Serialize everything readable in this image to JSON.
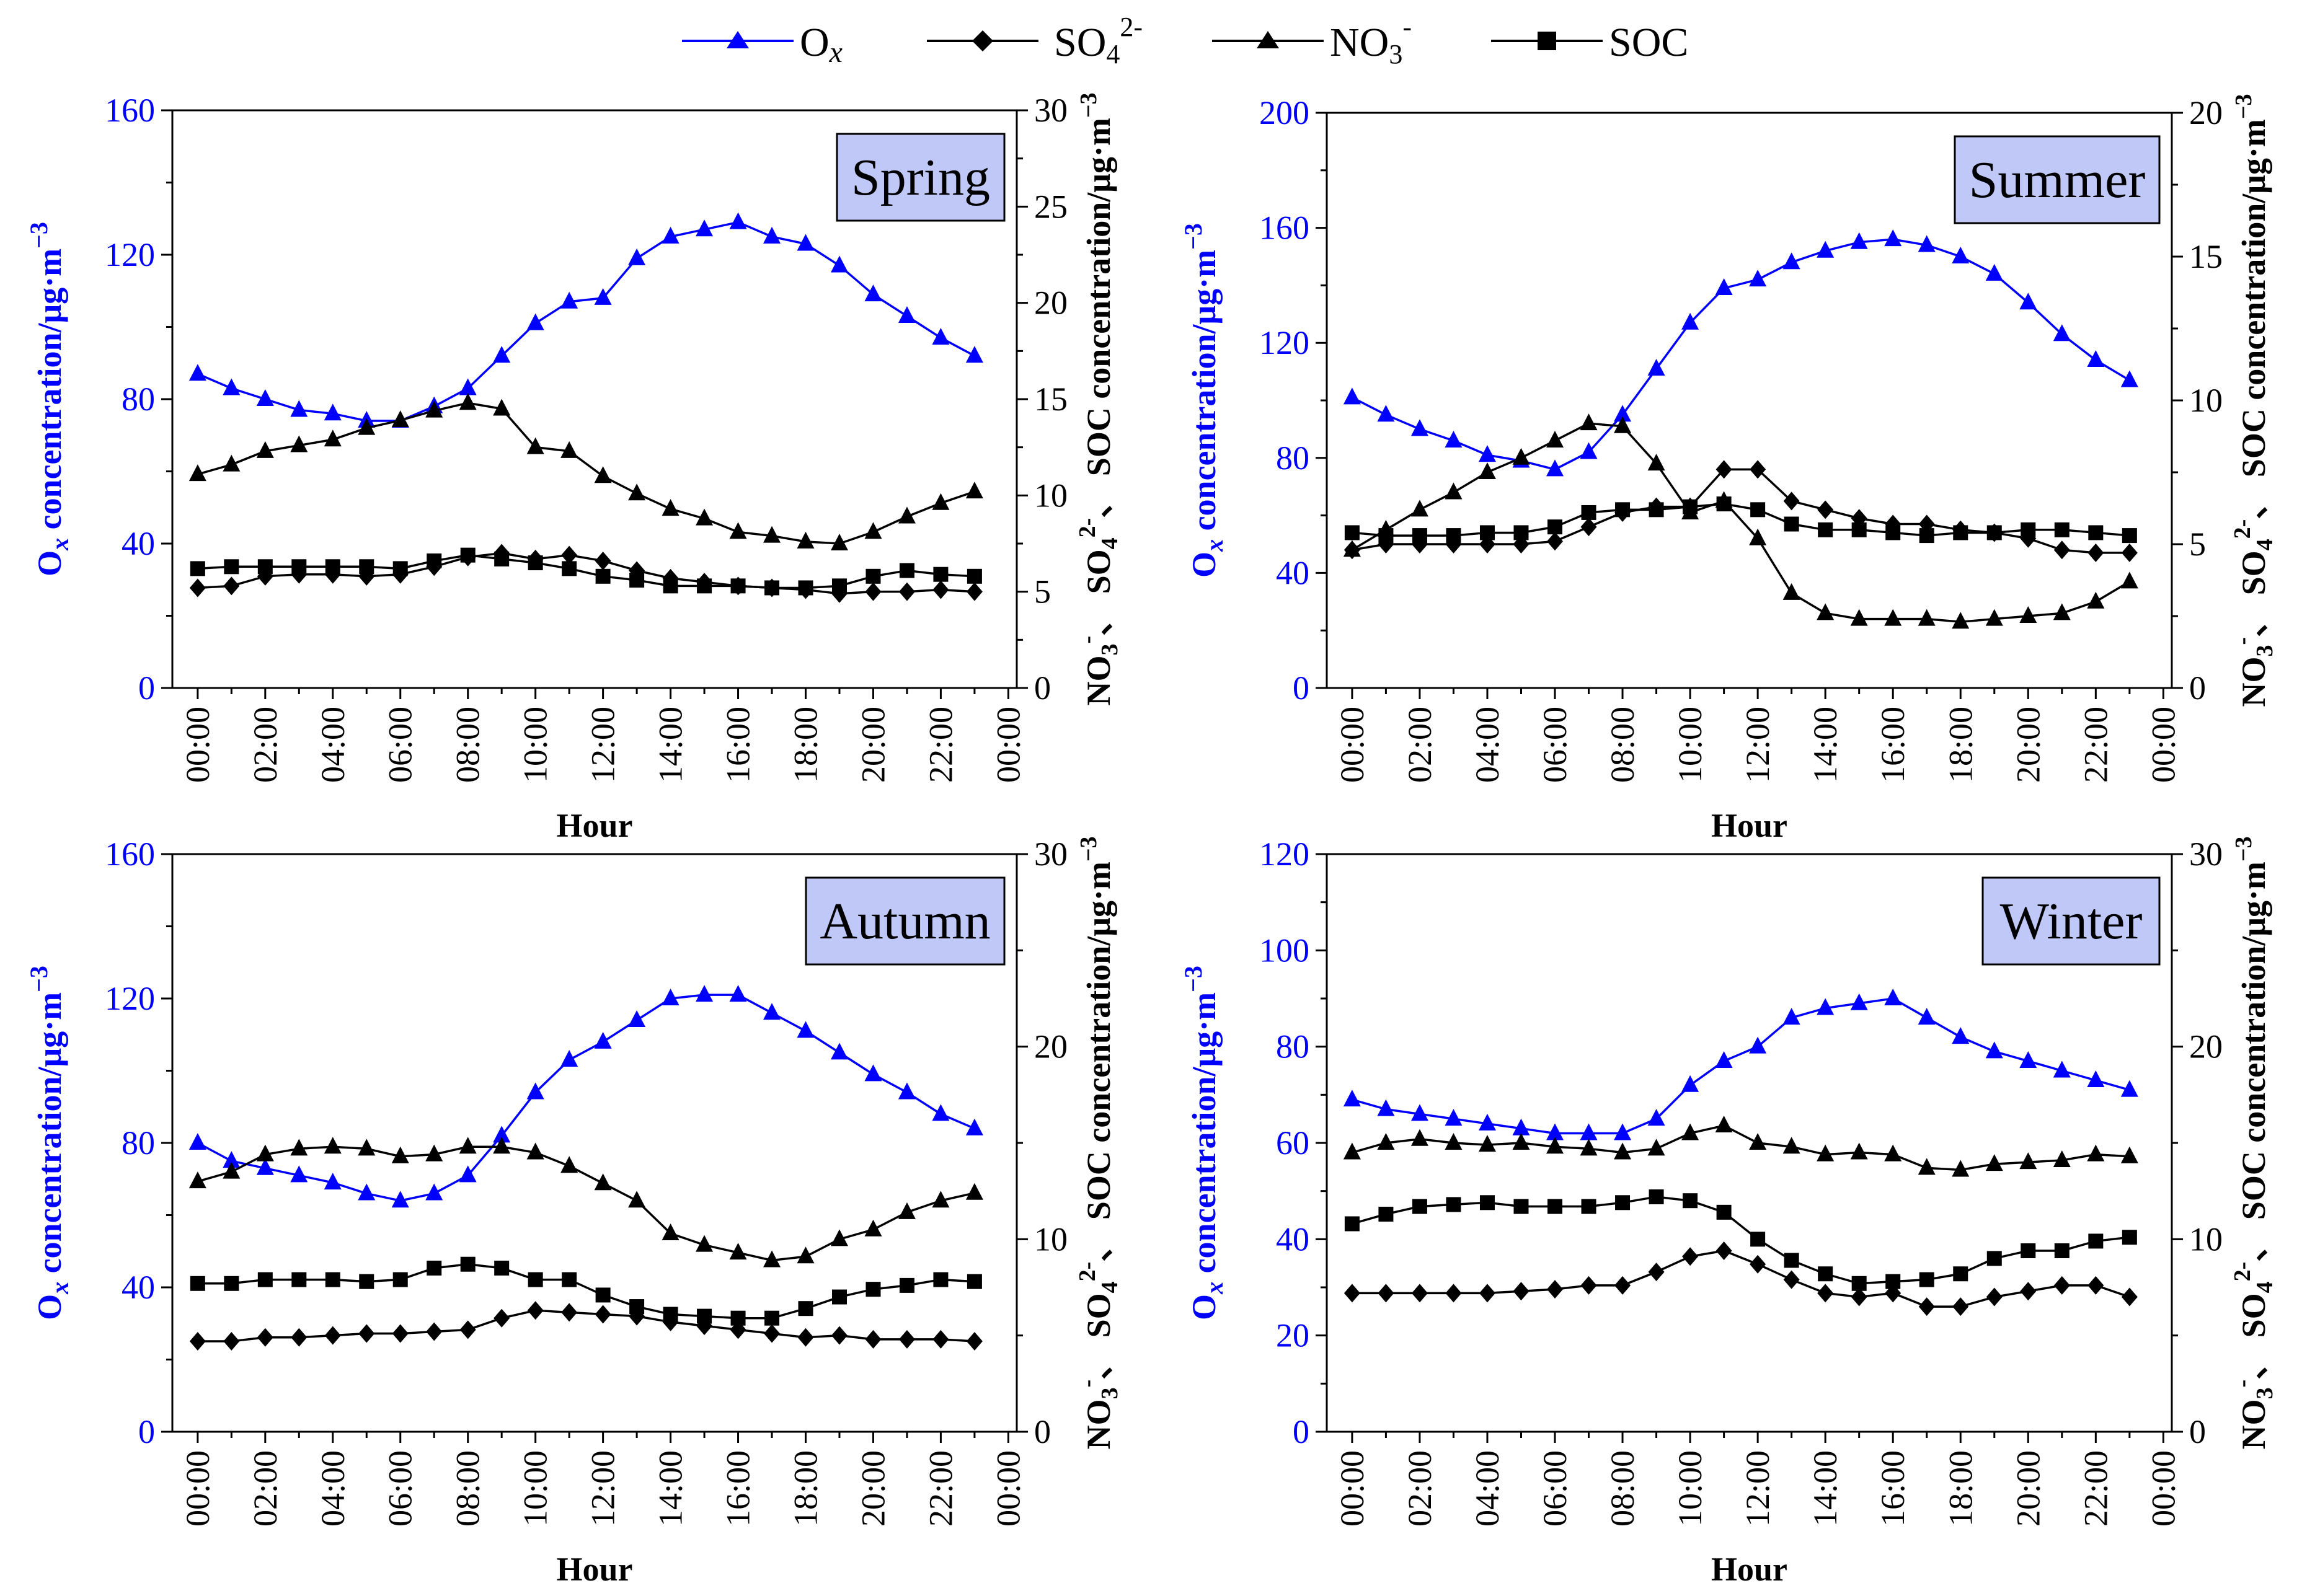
{
  "legend": {
    "ox": {
      "main": "O",
      "sub": "x"
    },
    "so4": {
      "main": "SO",
      "sub": "4",
      "sup": "2-"
    },
    "no3": {
      "main": "NO",
      "sub": "3",
      "sup": "-"
    },
    "soc": {
      "main": "SOC"
    }
  },
  "colors": {
    "ox": "#0000ff",
    "ions": "#000000",
    "panel_label_bg": "#c0c8f8"
  },
  "axis_text": {
    "xlabel": "Hour",
    "ylabel_left": {
      "main": "O",
      "sub": "x",
      "rest": " concentration/μg·m",
      "sup": "−3"
    },
    "ylabel_right": {
      "part1": "NO",
      "part1_sub": "3",
      "part1_sup": "-",
      "sep1": "、 SO",
      "part2_sub": "4",
      "part2_sup": "2-",
      "sep2": "、 SOC concentration/μg·m",
      "unit_sup": "−3"
    }
  },
  "chart_data": [
    {
      "type": "line",
      "title": "Spring",
      "categories": [
        "00:00",
        "02:00",
        "04:00",
        "06:00",
        "08:00",
        "10:00",
        "12:00",
        "14:00",
        "16:00",
        "18:00",
        "20:00",
        "22:00",
        "00:00"
      ],
      "x": [
        0,
        1,
        2,
        3,
        4,
        5,
        6,
        7,
        8,
        9,
        10,
        11,
        12,
        13,
        14,
        15,
        16,
        17,
        18,
        19,
        20,
        21,
        22,
        23
      ],
      "xlim": [
        -0.75,
        24.25
      ],
      "left_ylim": [
        0,
        160
      ],
      "left_yticks": [
        0,
        40,
        80,
        120,
        160
      ],
      "right_ylim": [
        0,
        30
      ],
      "right_yticks": [
        0,
        5,
        10,
        15,
        20,
        25,
        30
      ],
      "series": [
        {
          "name": "Ox",
          "axis": "left",
          "marker": "triangle",
          "values": [
            87,
            83,
            80,
            77,
            76,
            74,
            74,
            78,
            83,
            92,
            101,
            107,
            108,
            119,
            125,
            127,
            129,
            125,
            123,
            117,
            109,
            103,
            97,
            92
          ]
        },
        {
          "name": "SO42-",
          "axis": "right",
          "marker": "diamond",
          "values": [
            5.2,
            5.3,
            5.8,
            5.9,
            5.9,
            5.8,
            5.9,
            6.3,
            6.8,
            7.0,
            6.7,
            6.9,
            6.6,
            6.1,
            5.7,
            5.5,
            5.3,
            5.2,
            5.1,
            4.9,
            5.0,
            5.0,
            5.1,
            5.0
          ]
        },
        {
          "name": "NO3-",
          "axis": "right",
          "marker": "triangle",
          "values": [
            11.1,
            11.6,
            12.3,
            12.6,
            12.9,
            13.5,
            13.9,
            14.4,
            14.8,
            14.5,
            12.5,
            12.3,
            11.0,
            10.1,
            9.3,
            8.8,
            8.1,
            7.9,
            7.6,
            7.5,
            8.1,
            8.9,
            9.6,
            10.2
          ]
        },
        {
          "name": "SOC",
          "axis": "right",
          "marker": "square",
          "values": [
            6.2,
            6.3,
            6.3,
            6.3,
            6.3,
            6.3,
            6.2,
            6.6,
            6.9,
            6.7,
            6.5,
            6.2,
            5.8,
            5.6,
            5.3,
            5.3,
            5.3,
            5.2,
            5.2,
            5.3,
            5.8,
            6.1,
            5.9,
            5.8
          ]
        }
      ]
    },
    {
      "type": "line",
      "title": "Summer",
      "categories": [
        "00:00",
        "02:00",
        "04:00",
        "06:00",
        "08:00",
        "10:00",
        "12:00",
        "14:00",
        "16:00",
        "18:00",
        "20:00",
        "22:00",
        "00:00"
      ],
      "x": [
        0,
        1,
        2,
        3,
        4,
        5,
        6,
        7,
        8,
        9,
        10,
        11,
        12,
        13,
        14,
        15,
        16,
        17,
        18,
        19,
        20,
        21,
        22,
        23
      ],
      "xlim": [
        -0.75,
        24.25
      ],
      "left_ylim": [
        0,
        200
      ],
      "left_yticks": [
        0,
        40,
        80,
        120,
        160,
        200
      ],
      "right_ylim": [
        0,
        20
      ],
      "right_yticks": [
        0,
        5,
        10,
        15,
        20
      ],
      "series": [
        {
          "name": "Ox",
          "axis": "left",
          "marker": "triangle",
          "values": [
            101,
            95,
            90,
            86,
            81,
            79,
            76,
            82,
            95,
            111,
            127,
            139,
            142,
            148,
            152,
            155,
            156,
            154,
            150,
            144,
            134,
            123,
            114,
            107
          ]
        },
        {
          "name": "SO42-",
          "axis": "right",
          "marker": "diamond",
          "values": [
            4.8,
            5.0,
            5.0,
            5.0,
            5.0,
            5.0,
            5.1,
            5.6,
            6.1,
            6.3,
            6.3,
            7.6,
            7.6,
            6.5,
            6.2,
            5.9,
            5.7,
            5.7,
            5.5,
            5.4,
            5.2,
            4.8,
            4.7,
            4.7
          ]
        },
        {
          "name": "NO3-",
          "axis": "right",
          "marker": "triangle",
          "values": [
            4.8,
            5.5,
            6.2,
            6.8,
            7.5,
            8.0,
            8.6,
            9.2,
            9.1,
            7.8,
            6.1,
            6.5,
            5.2,
            3.3,
            2.6,
            2.4,
            2.4,
            2.4,
            2.3,
            2.4,
            2.5,
            2.6,
            3.0,
            3.7
          ]
        },
        {
          "name": "SOC",
          "axis": "right",
          "marker": "square",
          "values": [
            5.4,
            5.3,
            5.3,
            5.3,
            5.4,
            5.4,
            5.6,
            6.1,
            6.2,
            6.2,
            6.3,
            6.4,
            6.2,
            5.7,
            5.5,
            5.5,
            5.4,
            5.3,
            5.4,
            5.4,
            5.5,
            5.5,
            5.4,
            5.3
          ]
        }
      ]
    },
    {
      "type": "line",
      "title": "Autumn",
      "categories": [
        "00:00",
        "02:00",
        "04:00",
        "06:00",
        "08:00",
        "10:00",
        "12:00",
        "14:00",
        "16:00",
        "18:00",
        "20:00",
        "22:00",
        "00:00"
      ],
      "x": [
        0,
        1,
        2,
        3,
        4,
        5,
        6,
        7,
        8,
        9,
        10,
        11,
        12,
        13,
        14,
        15,
        16,
        17,
        18,
        19,
        20,
        21,
        22,
        23
      ],
      "xlim": [
        -0.75,
        24.25
      ],
      "left_ylim": [
        0,
        160
      ],
      "left_yticks": [
        0,
        40,
        80,
        120,
        160
      ],
      "right_ylim": [
        0,
        30
      ],
      "right_yticks": [
        0,
        10,
        20,
        30
      ],
      "series": [
        {
          "name": "Ox",
          "axis": "left",
          "marker": "triangle",
          "values": [
            80,
            75,
            73,
            71,
            69,
            66,
            64,
            66,
            71,
            82,
            94,
            103,
            108,
            114,
            120,
            121,
            121,
            116,
            111,
            105,
            99,
            94,
            88,
            84
          ]
        },
        {
          "name": "SO42-",
          "axis": "right",
          "marker": "diamond",
          "values": [
            4.7,
            4.7,
            4.9,
            4.9,
            5.0,
            5.1,
            5.1,
            5.2,
            5.3,
            5.9,
            6.3,
            6.2,
            6.1,
            6.0,
            5.7,
            5.5,
            5.3,
            5.1,
            4.9,
            5.0,
            4.8,
            4.8,
            4.8,
            4.7
          ]
        },
        {
          "name": "NO3-",
          "axis": "right",
          "marker": "triangle",
          "values": [
            13.0,
            13.5,
            14.4,
            14.7,
            14.8,
            14.7,
            14.3,
            14.4,
            14.8,
            14.8,
            14.5,
            13.8,
            12.9,
            12.0,
            10.3,
            9.7,
            9.3,
            8.9,
            9.1,
            10.0,
            10.5,
            11.4,
            12.0,
            12.4
          ]
        },
        {
          "name": "SOC",
          "axis": "right",
          "marker": "square",
          "values": [
            7.7,
            7.7,
            7.9,
            7.9,
            7.9,
            7.8,
            7.9,
            8.5,
            8.7,
            8.5,
            7.9,
            7.9,
            7.1,
            6.5,
            6.1,
            6.0,
            5.9,
            5.9,
            6.4,
            7.0,
            7.4,
            7.6,
            7.9,
            7.8
          ]
        }
      ]
    },
    {
      "type": "line",
      "title": "Winter",
      "categories": [
        "00:00",
        "02:00",
        "04:00",
        "06:00",
        "08:00",
        "10:00",
        "12:00",
        "14:00",
        "16:00",
        "18:00",
        "20:00",
        "22:00",
        "00:00"
      ],
      "x": [
        0,
        1,
        2,
        3,
        4,
        5,
        6,
        7,
        8,
        9,
        10,
        11,
        12,
        13,
        14,
        15,
        16,
        17,
        18,
        19,
        20,
        21,
        22,
        23
      ],
      "xlim": [
        -0.75,
        24.25
      ],
      "left_ylim": [
        0,
        120
      ],
      "left_yticks": [
        0,
        20,
        40,
        60,
        80,
        100,
        120
      ],
      "right_ylim": [
        0,
        30
      ],
      "right_yticks": [
        0,
        10,
        20,
        30
      ],
      "series": [
        {
          "name": "Ox",
          "axis": "left",
          "marker": "triangle",
          "values": [
            69,
            67,
            66,
            65,
            64,
            63,
            62,
            62,
            62,
            65,
            72,
            77,
            80,
            86,
            88,
            89,
            90,
            86,
            82,
            79,
            77,
            75,
            73,
            71
          ]
        },
        {
          "name": "SO42-",
          "axis": "right",
          "marker": "diamond",
          "values": [
            7.2,
            7.2,
            7.2,
            7.2,
            7.2,
            7.3,
            7.4,
            7.6,
            7.6,
            8.3,
            9.1,
            9.4,
            8.7,
            7.9,
            7.2,
            7.0,
            7.2,
            6.5,
            6.5,
            7.0,
            7.3,
            7.6,
            7.6,
            7.0
          ]
        },
        {
          "name": "NO3-",
          "axis": "right",
          "marker": "triangle",
          "values": [
            14.5,
            15.0,
            15.2,
            15.0,
            14.9,
            15.0,
            14.8,
            14.7,
            14.5,
            14.7,
            15.5,
            15.9,
            15.0,
            14.8,
            14.4,
            14.5,
            14.4,
            13.7,
            13.6,
            13.9,
            14.0,
            14.1,
            14.4,
            14.3
          ]
        },
        {
          "name": "SOC",
          "axis": "right",
          "marker": "square",
          "values": [
            10.8,
            11.3,
            11.7,
            11.8,
            11.9,
            11.7,
            11.7,
            11.7,
            11.9,
            12.2,
            12.0,
            11.4,
            10.0,
            8.9,
            8.2,
            7.7,
            7.8,
            7.9,
            8.2,
            9.0,
            9.4,
            9.4,
            9.9,
            10.1
          ]
        }
      ]
    }
  ]
}
